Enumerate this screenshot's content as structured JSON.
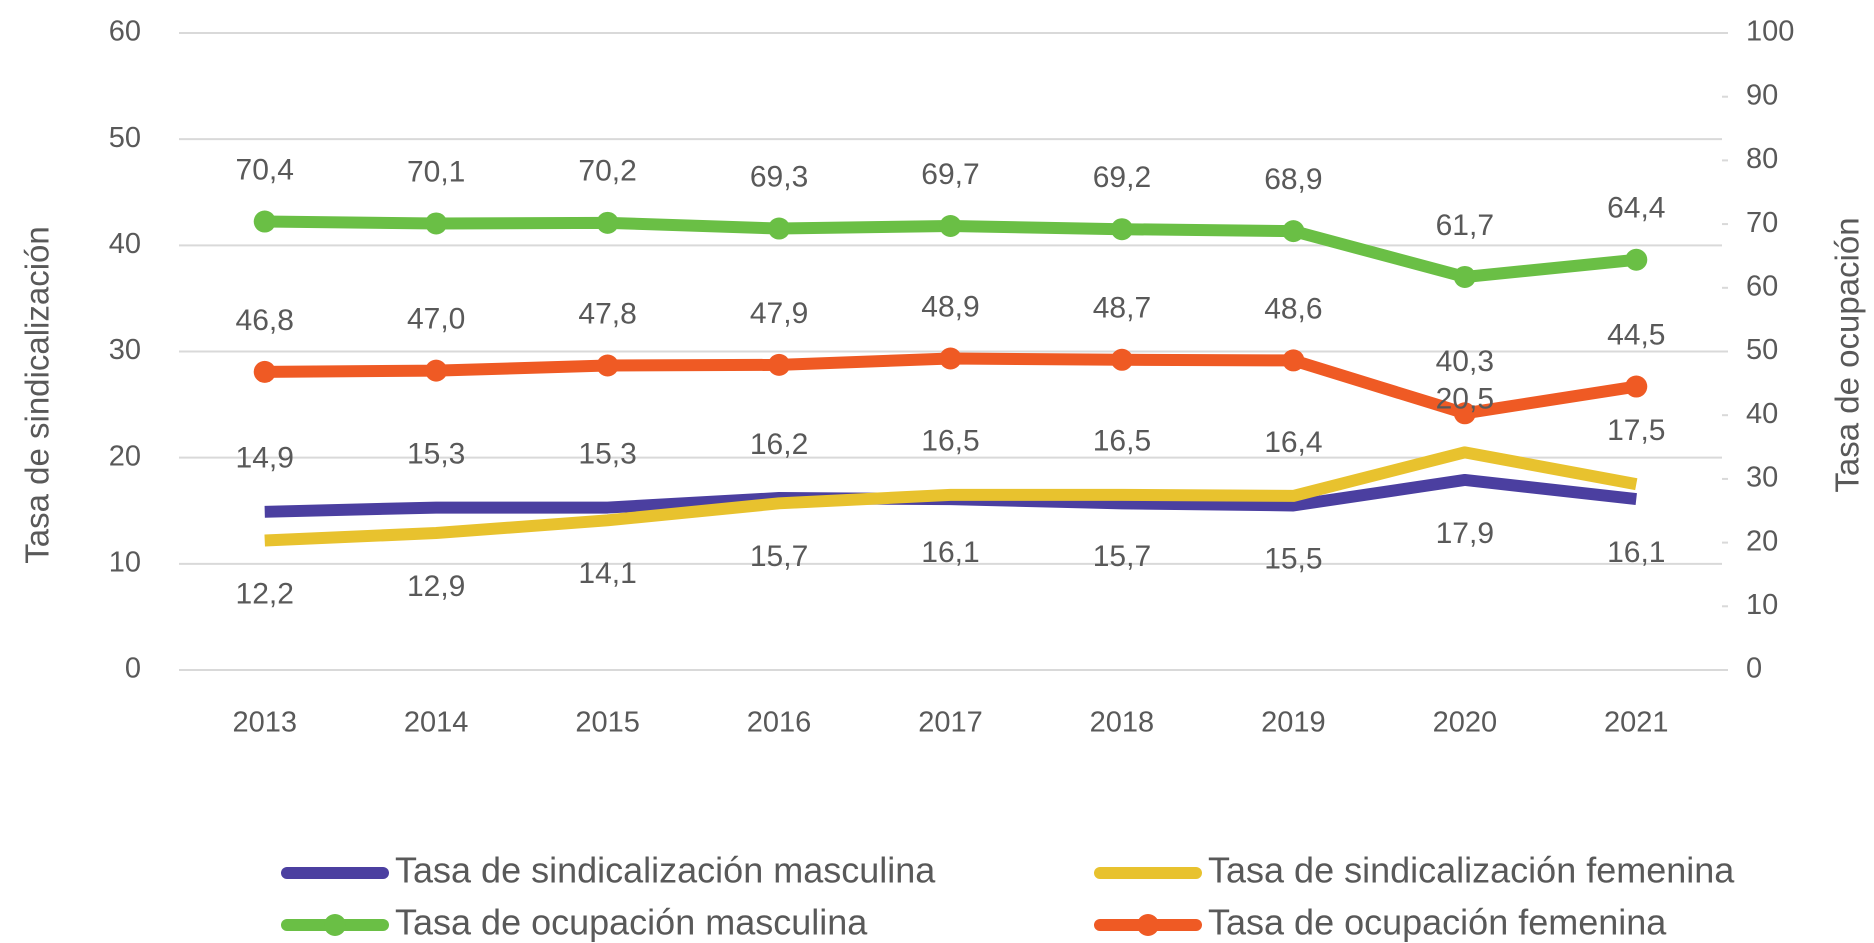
{
  "chart_data": {
    "type": "line",
    "y_label": "Tasa de sindicalización",
    "y2_label": "Tasa de ocupación",
    "categories": [
      "2013",
      "2014",
      "2015",
      "2016",
      "2017",
      "2018",
      "2019",
      "2020",
      "2021"
    ],
    "ylim": [
      0,
      60
    ],
    "yticks": [
      0,
      10,
      20,
      30,
      40,
      50,
      60
    ],
    "y2lim": [
      0,
      100
    ],
    "y2ticks": [
      0,
      10,
      20,
      30,
      40,
      50,
      60,
      70,
      80,
      90,
      100
    ],
    "grid": true,
    "legend": "bottom",
    "series": [
      {
        "name": "Tasa de sindicalización masculina",
        "color": "#4b3fa0",
        "markers": false,
        "values": [
          14.9,
          15.3,
          15.3,
          16.2,
          16.1,
          15.7,
          15.5,
          17.9,
          16.1
        ],
        "value_labels": [
          "14,9",
          "15,3",
          "15,3",
          "16,2",
          "16,1",
          "15,7",
          "15,5",
          "17,9",
          "16,1"
        ]
      },
      {
        "name": "Tasa de sindicalización femenina",
        "color": "#e8c22e",
        "markers": false,
        "values": [
          12.2,
          12.9,
          14.1,
          15.7,
          16.5,
          16.5,
          16.4,
          20.5,
          17.5
        ],
        "value_labels": [
          "12,2",
          "12,9",
          "14,1",
          "15,7",
          "16,5",
          "16,5",
          "16,4",
          "20,5",
          "17,5"
        ]
      },
      {
        "name": "Tasa de ocupación masculina",
        "color": "#6abf45",
        "markers": true,
        "axis": "y2",
        "values": [
          70.4,
          70.1,
          70.2,
          69.3,
          69.7,
          69.2,
          68.9,
          61.7,
          64.4
        ],
        "value_labels": [
          "70,4",
          "70,1",
          "70,2",
          "69,3",
          "69,7",
          "69,2",
          "68,9",
          "61,7",
          "64,4"
        ]
      },
      {
        "name": "Tasa de ocupación femenina",
        "color": "#ef5a24",
        "markers": true,
        "axis": "y2",
        "values": [
          46.8,
          47.0,
          47.8,
          47.9,
          48.9,
          48.7,
          48.6,
          40.3,
          44.5
        ],
        "value_labels": [
          "46,8",
          "47,0",
          "47,8",
          "47,9",
          "48,9",
          "48,7",
          "48,6",
          "40,3",
          "44,5"
        ]
      }
    ]
  }
}
